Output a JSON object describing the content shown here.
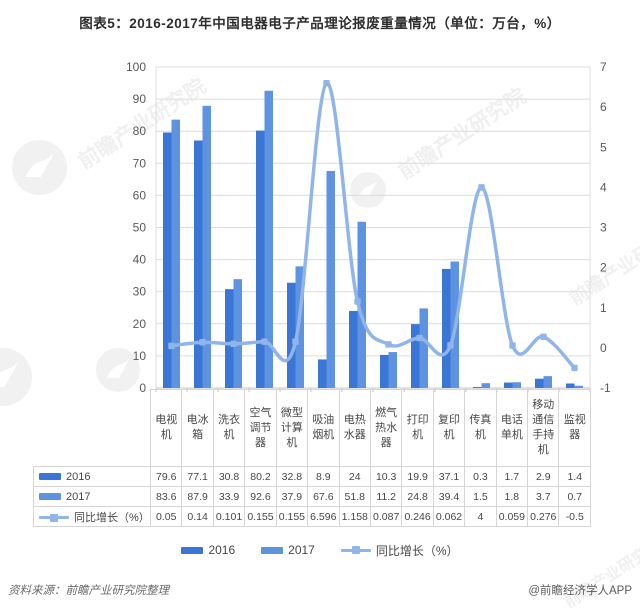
{
  "title": "图表5：2016-2017年中国电器电子产品理论报废重量情况（单位：万台，%）",
  "chart_data": {
    "type": "bar+line combo",
    "categories": [
      "电视机",
      "电冰箱",
      "洗衣机",
      "空气调节器",
      "微型计算机",
      "吸油烟机",
      "电热水器",
      "燃气热水器",
      "打印机",
      "复印机",
      "传真机",
      "电话单机",
      "移动通信手持机",
      "监视器"
    ],
    "series": [
      {
        "name": "2016",
        "type": "bar",
        "axis": "left",
        "color": "#3a76d6",
        "values": [
          79.6,
          77.1,
          30.8,
          80.2,
          32.8,
          8.9,
          24,
          10.3,
          19.9,
          37.1,
          0.3,
          1.7,
          2.9,
          1.4
        ]
      },
      {
        "name": "2017",
        "type": "bar",
        "axis": "left",
        "color": "#5d93e1",
        "values": [
          83.6,
          87.9,
          33.9,
          92.6,
          37.9,
          67.6,
          51.8,
          11.2,
          24.8,
          39.4,
          1.5,
          1.8,
          3.7,
          0.7
        ]
      },
      {
        "name": "同比增长（%）",
        "type": "line",
        "axis": "right",
        "color": "#90b5ea",
        "values": [
          0.05,
          0.14,
          0.101,
          0.155,
          0.155,
          6.596,
          1.158,
          0.087,
          0.246,
          0.062,
          4,
          0.059,
          0.276,
          -0.5
        ]
      }
    ],
    "left_axis": {
      "min": 0,
      "max": 100,
      "step": 10
    },
    "right_axis": {
      "min": -1,
      "max": 7,
      "step": 1
    },
    "grid": true,
    "legend_position": "bottom"
  },
  "footer": {
    "source": "资料来源：前瞻产业研究院整理",
    "brand": "@前瞻经济学人APP"
  },
  "watermark": {
    "text": "前瞻产业研究院"
  }
}
